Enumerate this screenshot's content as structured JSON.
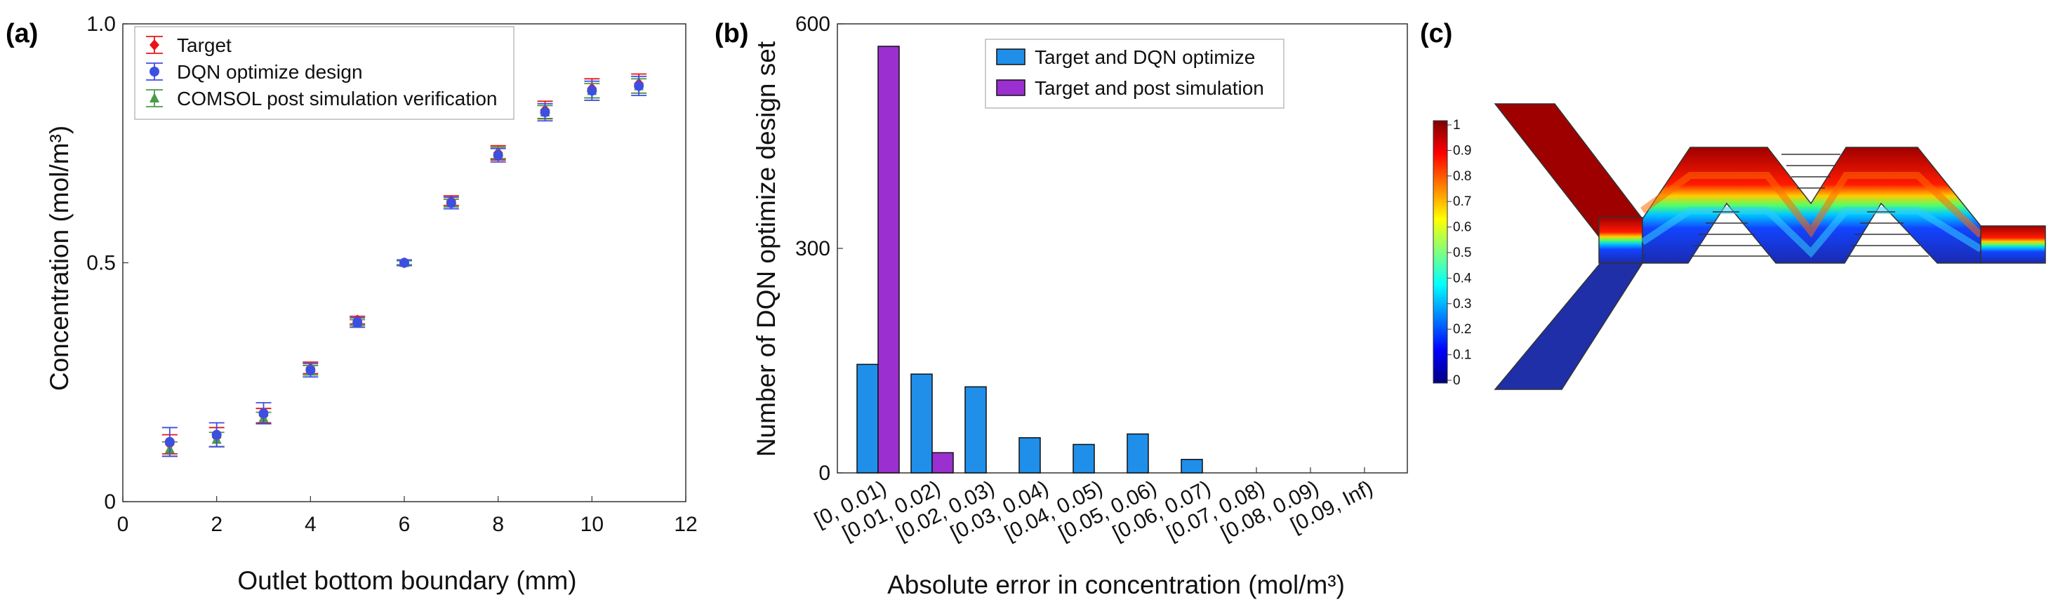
{
  "panel_a": {
    "label": "(a)",
    "chart_data": {
      "type": "scatter",
      "xlabel": "Outlet bottom boundary (mm)",
      "ylabel": "Concentration (mol/m³)",
      "xlim": [
        0,
        12
      ],
      "ylim": [
        0,
        1.0
      ],
      "xticks": [
        "0",
        "2",
        "4",
        "6",
        "8",
        "10",
        "12"
      ],
      "yticks": [
        "0",
        "0.5",
        "1.0"
      ],
      "x": [
        1,
        2,
        3,
        4,
        5,
        6,
        7,
        8,
        9,
        10,
        11
      ],
      "series": [
        {
          "name": "Target",
          "color": "#e8141a",
          "marker": "diamond",
          "values": [
            0.12,
            0.135,
            0.18,
            0.28,
            0.38,
            0.5,
            0.63,
            0.73,
            0.82,
            0.865,
            0.875
          ],
          "errors": [
            0.02,
            0.02,
            0.015,
            0.012,
            0.008,
            0.005,
            0.01,
            0.015,
            0.018,
            0.02,
            0.02
          ]
        },
        {
          "name": "DQN optimize design",
          "color": "#3c4fe0",
          "marker": "circle",
          "values": [
            0.125,
            0.14,
            0.185,
            0.275,
            0.375,
            0.5,
            0.625,
            0.725,
            0.815,
            0.86,
            0.87
          ],
          "errors": [
            0.03,
            0.025,
            0.022,
            0.014,
            0.01,
            0.006,
            0.012,
            0.014,
            0.018,
            0.02,
            0.02
          ]
        },
        {
          "name": "COMSOL post simulation verification",
          "color": "#4a9a4a",
          "marker": "triangle",
          "values": [
            0.11,
            0.13,
            0.175,
            0.275,
            0.375,
            0.5,
            0.625,
            0.73,
            0.815,
            0.86,
            0.87
          ],
          "errors": [
            0.015,
            0.015,
            0.012,
            0.01,
            0.006,
            0.004,
            0.008,
            0.012,
            0.014,
            0.015,
            0.015
          ]
        }
      ]
    }
  },
  "panel_b": {
    "label": "(b)",
    "chart_data": {
      "type": "bar",
      "xlabel": "Absolute error in concentration (mol/m³)",
      "ylabel": "Number of DQN optimize design set",
      "ylim": [
        0,
        600
      ],
      "yticks": [
        "0",
        "300",
        "600"
      ],
      "categories": [
        "[0, 0.01)",
        "[0.01, 0.02)",
        "[0.02, 0.03)",
        "[0.03, 0.04)",
        "[0.04, 0.05)",
        "[0.05, 0.06)",
        "[0.06, 0.07)",
        "[0.07, 0.08)",
        "[0.08, 0.09)",
        "[0.09, Inf)"
      ],
      "series": [
        {
          "name": "Target and DQN optimize",
          "color": "#1f8fea",
          "values": [
            145,
            132,
            115,
            47,
            38,
            52,
            18,
            0,
            0,
            0
          ]
        },
        {
          "name": "Target and post simulation",
          "color": "#9b2fcf",
          "values": [
            570,
            27,
            0,
            0,
            0,
            0,
            0,
            0,
            0,
            0
          ]
        }
      ]
    }
  },
  "panel_c": {
    "label": "(c)",
    "colorbar": {
      "type": "heatmap",
      "colormap": "jet",
      "range": [
        0,
        1
      ],
      "ticks": [
        "1",
        "0.9",
        "0.8",
        "0.7",
        "0.6",
        "0.5",
        "0.4",
        "0.3",
        "0.2",
        "0.1",
        "0"
      ]
    }
  }
}
